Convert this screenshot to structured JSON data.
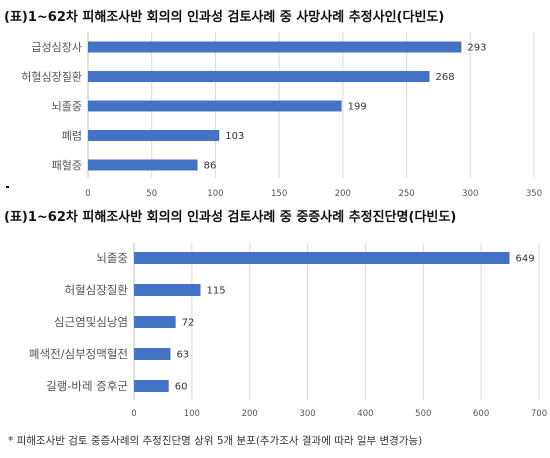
{
  "chart_data": [
    {
      "type": "bar",
      "orientation": "horizontal",
      "title": "(표)1~62차 피해조사반 회의의 인과성 검토사례 중 사망사례 추정사인(다빈도)",
      "categories": [
        "급성심장사",
        "허혈심장질환",
        "뇌졸중",
        "폐렴",
        "패혈증"
      ],
      "values": [
        293,
        268,
        199,
        103,
        86
      ],
      "xlim": [
        0,
        350
      ],
      "xticks": [
        0,
        50,
        100,
        150,
        200,
        250,
        300,
        350
      ],
      "grid": true,
      "bar_color": "#4472c4"
    },
    {
      "type": "bar",
      "orientation": "horizontal",
      "title": "(표)1~62차 피해조사반 회의의 인과성 검토사례 중 중증사례 추정진단명(다빈도)",
      "categories": [
        "뇌졸중",
        "허혈심장질환",
        "심근염및심낭염",
        "폐색전/심부정맥혈전",
        "길랭-바레 증후군"
      ],
      "values": [
        649,
        115,
        72,
        63,
        60
      ],
      "xlim": [
        0,
        700
      ],
      "xticks": [
        0,
        100,
        200,
        300,
        400,
        500,
        600,
        700
      ],
      "grid": true,
      "bar_color": "#4472c4"
    }
  ],
  "footnote": "* 피해조사반 검토 중증사례의 추정진단명 상위 5개 분포(추가조사 결과에 따라 일부 변경가능)"
}
